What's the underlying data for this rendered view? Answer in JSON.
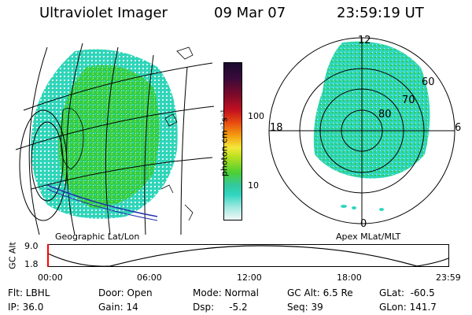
{
  "header": {
    "instrument": "Ultraviolet Imager",
    "date": "09 Mar 07",
    "time": "23:59:19 UT"
  },
  "colorbar": {
    "label": "photon cm⁻²s⁻¹",
    "ticks": [
      "100",
      "10"
    ]
  },
  "polar": {
    "mlt_labels": [
      "12",
      "18",
      "6",
      "0"
    ],
    "lat_labels": [
      "60",
      "70",
      "80"
    ],
    "caption": "Apex MLat/MLT"
  },
  "geo": {
    "caption": "Geographic Lat/Lon"
  },
  "altitude_plot": {
    "ylabel": "GC Alt",
    "yticks": [
      "9.0",
      "1.8"
    ],
    "xticks": [
      "00:00",
      "06:00",
      "12:00",
      "18:00",
      "23:59"
    ]
  },
  "info": {
    "flt": "Flt: LBHL",
    "ip": "IP: 36.0",
    "door": "Door: Open",
    "gain": "Gain: 14",
    "mode": "Mode: Normal",
    "dsp": "Dsp:     -5.2",
    "gcalt": "GC Alt: 6.5 Re",
    "seq": "Seq: 39",
    "glat": "GLat:  -60.5",
    "glon": "GLon: 141.7"
  },
  "colors": {
    "aurora_cyan": "#2fd6bf",
    "aurora_green": "#33cc44",
    "current_time_marker": "#ff0000"
  }
}
